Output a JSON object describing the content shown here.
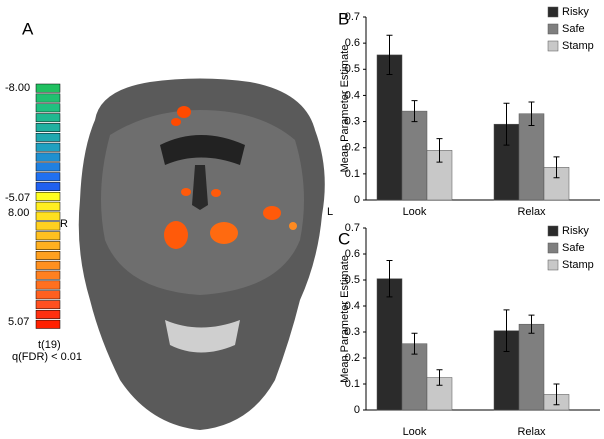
{
  "panel_a": {
    "label": "A",
    "left_side": "R",
    "right_side": "L",
    "colorbar_labels": [
      "-8.00",
      "-5.07",
      "8.00",
      "5.07"
    ],
    "stat": "t(19)",
    "threshold": "q(FDR) < 0.01"
  },
  "chart_data": [
    {
      "type": "bar",
      "panel": "B",
      "y_label": "Mean Parameter Estimate",
      "categories": [
        "Look",
        "Relax"
      ],
      "series": [
        {
          "name": "Risky",
          "color": "#2b2b2b",
          "values": [
            0.555,
            0.29
          ],
          "errors": [
            0.075,
            0.08
          ]
        },
        {
          "name": "Safe",
          "color": "#7f7f7f",
          "values": [
            0.34,
            0.33
          ],
          "errors": [
            0.04,
            0.045
          ]
        },
        {
          "name": "Stamp",
          "color": "#c8c8c8",
          "values": [
            0.19,
            0.125
          ],
          "errors": [
            0.045,
            0.04
          ]
        }
      ],
      "ylim": [
        0,
        0.7
      ],
      "yticks": [
        0,
        0.1,
        0.2,
        0.3,
        0.4,
        0.5,
        0.6,
        0.7
      ]
    },
    {
      "type": "bar",
      "panel": "C",
      "y_label": "Mean Parameter Estimate",
      "categories": [
        "Look",
        "Relax"
      ],
      "series": [
        {
          "name": "Risky",
          "color": "#2b2b2b",
          "values": [
            0.505,
            0.305
          ],
          "errors": [
            0.07,
            0.08
          ]
        },
        {
          "name": "Safe",
          "color": "#7f7f7f",
          "values": [
            0.255,
            0.33
          ],
          "errors": [
            0.04,
            0.035
          ]
        },
        {
          "name": "Stamp",
          "color": "#c8c8c8",
          "values": [
            0.125,
            0.06
          ],
          "errors": [
            0.03,
            0.04
          ]
        }
      ],
      "ylim": [
        0,
        0.7
      ],
      "yticks": [
        0,
        0.1,
        0.2,
        0.3,
        0.4,
        0.5,
        0.6,
        0.7
      ]
    }
  ]
}
